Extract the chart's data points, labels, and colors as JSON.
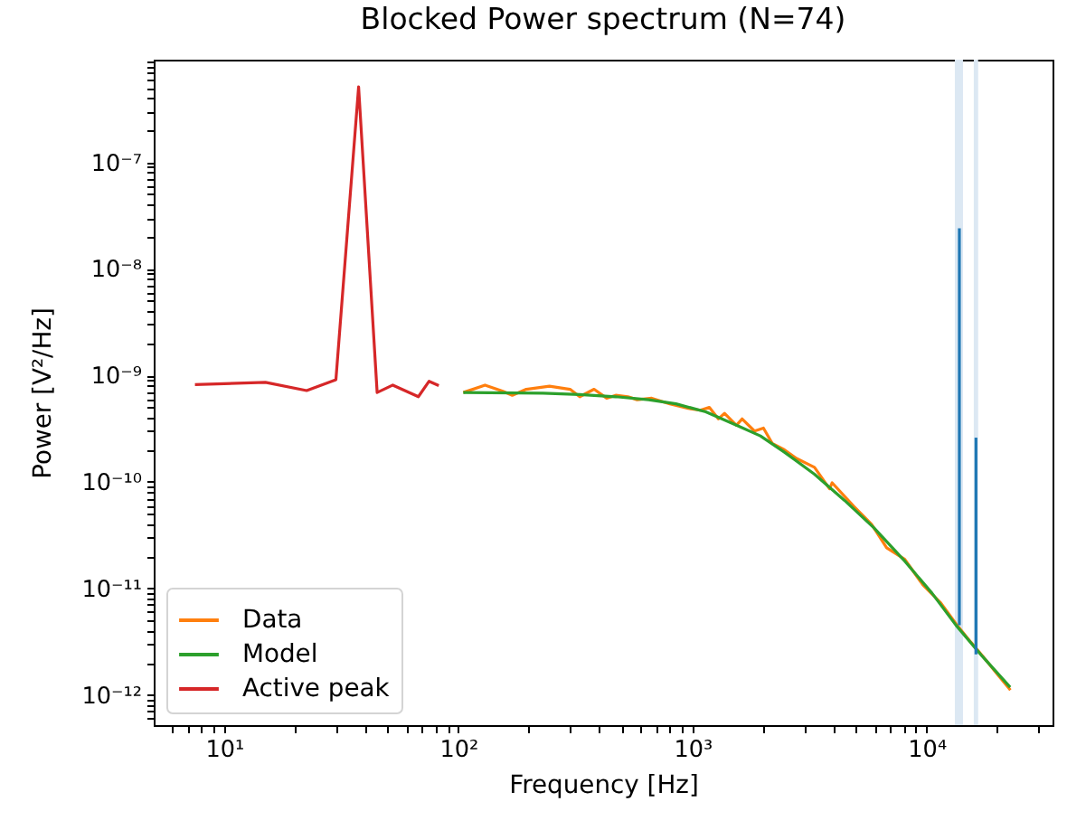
{
  "chart_data": {
    "type": "line",
    "title": "Blocked Power spectrum (N=74)",
    "xlabel": "Frequency [Hz]",
    "ylabel": "Power [V²/Hz]",
    "log": "xy",
    "legend": "bottom left",
    "xlim": [
      5.0,
      34500
    ],
    "ylim": [
      5.2e-13,
      9.2e-07
    ],
    "xticks": [
      {
        "value": 6,
        "label": null
      },
      {
        "value": 7,
        "label": null
      },
      {
        "value": 8,
        "label": null
      },
      {
        "value": 9,
        "label": null
      },
      {
        "value": 10,
        "label": "10¹"
      },
      {
        "value": 20,
        "label": null
      },
      {
        "value": 30,
        "label": null
      },
      {
        "value": 40,
        "label": null
      },
      {
        "value": 50,
        "label": null
      },
      {
        "value": 60,
        "label": null
      },
      {
        "value": 70,
        "label": null
      },
      {
        "value": 80,
        "label": null
      },
      {
        "value": 90,
        "label": null
      },
      {
        "value": 100,
        "label": "10²"
      },
      {
        "value": 200,
        "label": null
      },
      {
        "value": 300,
        "label": null
      },
      {
        "value": 400,
        "label": null
      },
      {
        "value": 500,
        "label": null
      },
      {
        "value": 600,
        "label": null
      },
      {
        "value": 700,
        "label": null
      },
      {
        "value": 800,
        "label": null
      },
      {
        "value": 900,
        "label": null
      },
      {
        "value": 1000,
        "label": "10³"
      },
      {
        "value": 2000,
        "label": null
      },
      {
        "value": 3000,
        "label": null
      },
      {
        "value": 4000,
        "label": null
      },
      {
        "value": 5000,
        "label": null
      },
      {
        "value": 6000,
        "label": null
      },
      {
        "value": 7000,
        "label": null
      },
      {
        "value": 8000,
        "label": null
      },
      {
        "value": 9000,
        "label": null
      },
      {
        "value": 10000,
        "label": "10⁴"
      },
      {
        "value": 20000,
        "label": null
      },
      {
        "value": 30000,
        "label": null
      }
    ],
    "yticks": [
      {
        "value": 6e-13,
        "label": null
      },
      {
        "value": 7e-13,
        "label": null
      },
      {
        "value": 8e-13,
        "label": null
      },
      {
        "value": 9e-13,
        "label": null
      },
      {
        "value": 1e-12,
        "label": "10⁻¹²"
      },
      {
        "value": 2e-12,
        "label": null
      },
      {
        "value": 3e-12,
        "label": null
      },
      {
        "value": 4e-12,
        "label": null
      },
      {
        "value": 5e-12,
        "label": null
      },
      {
        "value": 6e-12,
        "label": null
      },
      {
        "value": 7e-12,
        "label": null
      },
      {
        "value": 8e-12,
        "label": null
      },
      {
        "value": 9e-12,
        "label": null
      },
      {
        "value": 1e-11,
        "label": "10⁻¹¹"
      },
      {
        "value": 2e-11,
        "label": null
      },
      {
        "value": 3e-11,
        "label": null
      },
      {
        "value": 4e-11,
        "label": null
      },
      {
        "value": 5e-11,
        "label": null
      },
      {
        "value": 6e-11,
        "label": null
      },
      {
        "value": 7e-11,
        "label": null
      },
      {
        "value": 8e-11,
        "label": null
      },
      {
        "value": 9e-11,
        "label": null
      },
      {
        "value": 1e-10,
        "label": "10⁻¹⁰"
      },
      {
        "value": 2e-10,
        "label": null
      },
      {
        "value": 3e-10,
        "label": null
      },
      {
        "value": 4e-10,
        "label": null
      },
      {
        "value": 5e-10,
        "label": null
      },
      {
        "value": 6e-10,
        "label": null
      },
      {
        "value": 7e-10,
        "label": null
      },
      {
        "value": 8e-10,
        "label": null
      },
      {
        "value": 9e-10,
        "label": null
      },
      {
        "value": 1e-09,
        "label": "10⁻⁹"
      },
      {
        "value": 2e-09,
        "label": null
      },
      {
        "value": 3e-09,
        "label": null
      },
      {
        "value": 4e-09,
        "label": null
      },
      {
        "value": 5e-09,
        "label": null
      },
      {
        "value": 6e-09,
        "label": null
      },
      {
        "value": 7e-09,
        "label": null
      },
      {
        "value": 8e-09,
        "label": null
      },
      {
        "value": 9e-09,
        "label": null
      },
      {
        "value": 1e-08,
        "label": "10⁻⁸"
      },
      {
        "value": 2e-08,
        "label": null
      },
      {
        "value": 3e-08,
        "label": null
      },
      {
        "value": 4e-08,
        "label": null
      },
      {
        "value": 5e-08,
        "label": null
      },
      {
        "value": 6e-08,
        "label": null
      },
      {
        "value": 7e-08,
        "label": null
      },
      {
        "value": 8e-08,
        "label": null
      },
      {
        "value": 9e-08,
        "label": null
      },
      {
        "value": 1e-07,
        "label": "10⁻⁷"
      },
      {
        "value": 2e-07,
        "label": null
      },
      {
        "value": 3e-07,
        "label": null
      },
      {
        "value": 4e-07,
        "label": null
      },
      {
        "value": 5e-07,
        "label": null
      },
      {
        "value": 6e-07,
        "label": null
      },
      {
        "value": 7e-07,
        "label": null
      },
      {
        "value": 8e-07,
        "label": null
      },
      {
        "value": 9e-07,
        "label": null
      }
    ],
    "bands": [
      {
        "axis": "x",
        "from": 13200,
        "to": 14300,
        "color": "#dce8f3"
      },
      {
        "axis": "x",
        "from": 15900,
        "to": 16600,
        "color": "#dce8f3"
      }
    ],
    "series": [
      {
        "name": "Data",
        "color": "#ff7f0e",
        "x": [
          105,
          130,
          155,
          170,
          195,
          245,
          300,
          330,
          380,
          430,
          470,
          530,
          580,
          670,
          800,
          960,
          1080,
          1180,
          1290,
          1370,
          1540,
          1630,
          1840,
          2010,
          2190,
          2470,
          2780,
          3320,
          3850,
          3950,
          4880,
          5820,
          6750,
          8070,
          9640,
          11500,
          13400,
          15500,
          17400,
          20200,
          22800
        ],
        "values": [
          6.9e-10,
          8.1e-10,
          7.1e-10,
          6.5e-10,
          7.4e-10,
          7.9e-10,
          7.4e-10,
          6.3e-10,
          7.4e-10,
          6.1e-10,
          6.5e-10,
          6.3e-10,
          5.9e-10,
          6.1e-10,
          5.4e-10,
          4.9e-10,
          4.7e-10,
          5e-10,
          3.9e-10,
          4.4e-10,
          3.4e-10,
          3.9e-10,
          3e-10,
          3.2e-10,
          2.3e-10,
          2e-10,
          1.66e-10,
          1.37e-10,
          8.6e-11,
          9.8e-11,
          5.9e-11,
          4e-11,
          2.4e-11,
          1.87e-11,
          1.08e-11,
          7.3e-12,
          4.6e-12,
          3.1e-12,
          2.3e-12,
          1.53e-12,
          1.11e-12
        ]
      },
      {
        "name": "Model",
        "color": "#2ca02c",
        "x": [
          105,
          230,
          330,
          470,
          650,
          850,
          1140,
          1540,
          1950,
          2470,
          3320,
          4460,
          5960,
          8070,
          10550,
          13360,
          17300,
          22750
        ],
        "values": [
          6.9e-10,
          6.8e-10,
          6.6e-10,
          6.3e-10,
          5.9e-10,
          5.4e-10,
          4.55e-10,
          3.4e-10,
          2.7e-10,
          1.9e-10,
          1.18e-10,
          6.7e-11,
          3.7e-11,
          1.8e-11,
          9e-12,
          4.5e-12,
          2.3e-12,
          1.18e-12
        ]
      },
      {
        "name": "Active peak",
        "color": "#d62728",
        "x": [
          7.5,
          15,
          22.5,
          30,
          37.5,
          45,
          52.5,
          67.5,
          75,
          82.5
        ],
        "values": [
          8.2e-10,
          8.6e-10,
          7.2e-10,
          9.1e-10,
          5.1e-07,
          6.9e-10,
          8.1e-10,
          6.3e-10,
          8.8e-10,
          8e-10
        ]
      },
      {
        "color": "#1f77b4",
        "x": [
          13800,
          13800
        ],
        "values": [
          4.5e-12,
          2.4e-08
        ]
      },
      {
        "color": "#1f77b4",
        "x": [
          16250,
          16250
        ],
        "values": [
          2.4e-12,
          2.6e-10
        ]
      }
    ]
  }
}
